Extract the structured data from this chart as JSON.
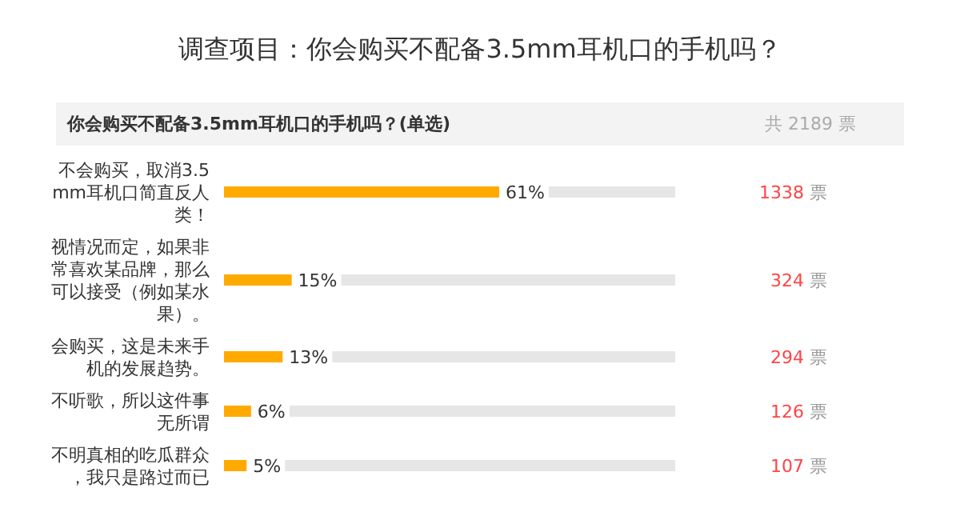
{
  "chart_data": {
    "type": "bar",
    "orientation": "horizontal",
    "title": "调查项目：你会购买不配备3.5mm耳机口的手机吗？",
    "subtitle": "你会购买不配备3.5mm耳机口的手机吗？(单选)",
    "categories": [
      "不会购买，取消3.5mm耳机口简直反人类！",
      "视情况而定，如果非常喜欢某品牌，那么可以接受（例如某水果）。",
      "会购买，这是未来手机的发展趋势。",
      "不听歌，所以这件事无所谓",
      "不明真相的吃瓜群众，我只是路过而已"
    ],
    "values": [
      61,
      15,
      13,
      6,
      5
    ],
    "color": "#ffaa00",
    "xlim": [
      0,
      100
    ],
    "value_labels": [
      "61%",
      "15%",
      "13%",
      "6%",
      "5%"
    ],
    "annotations": [
      "共 2189 票",
      "1338 票",
      "324 票",
      "294 票",
      "126 票",
      "107 票"
    ]
  }
}
